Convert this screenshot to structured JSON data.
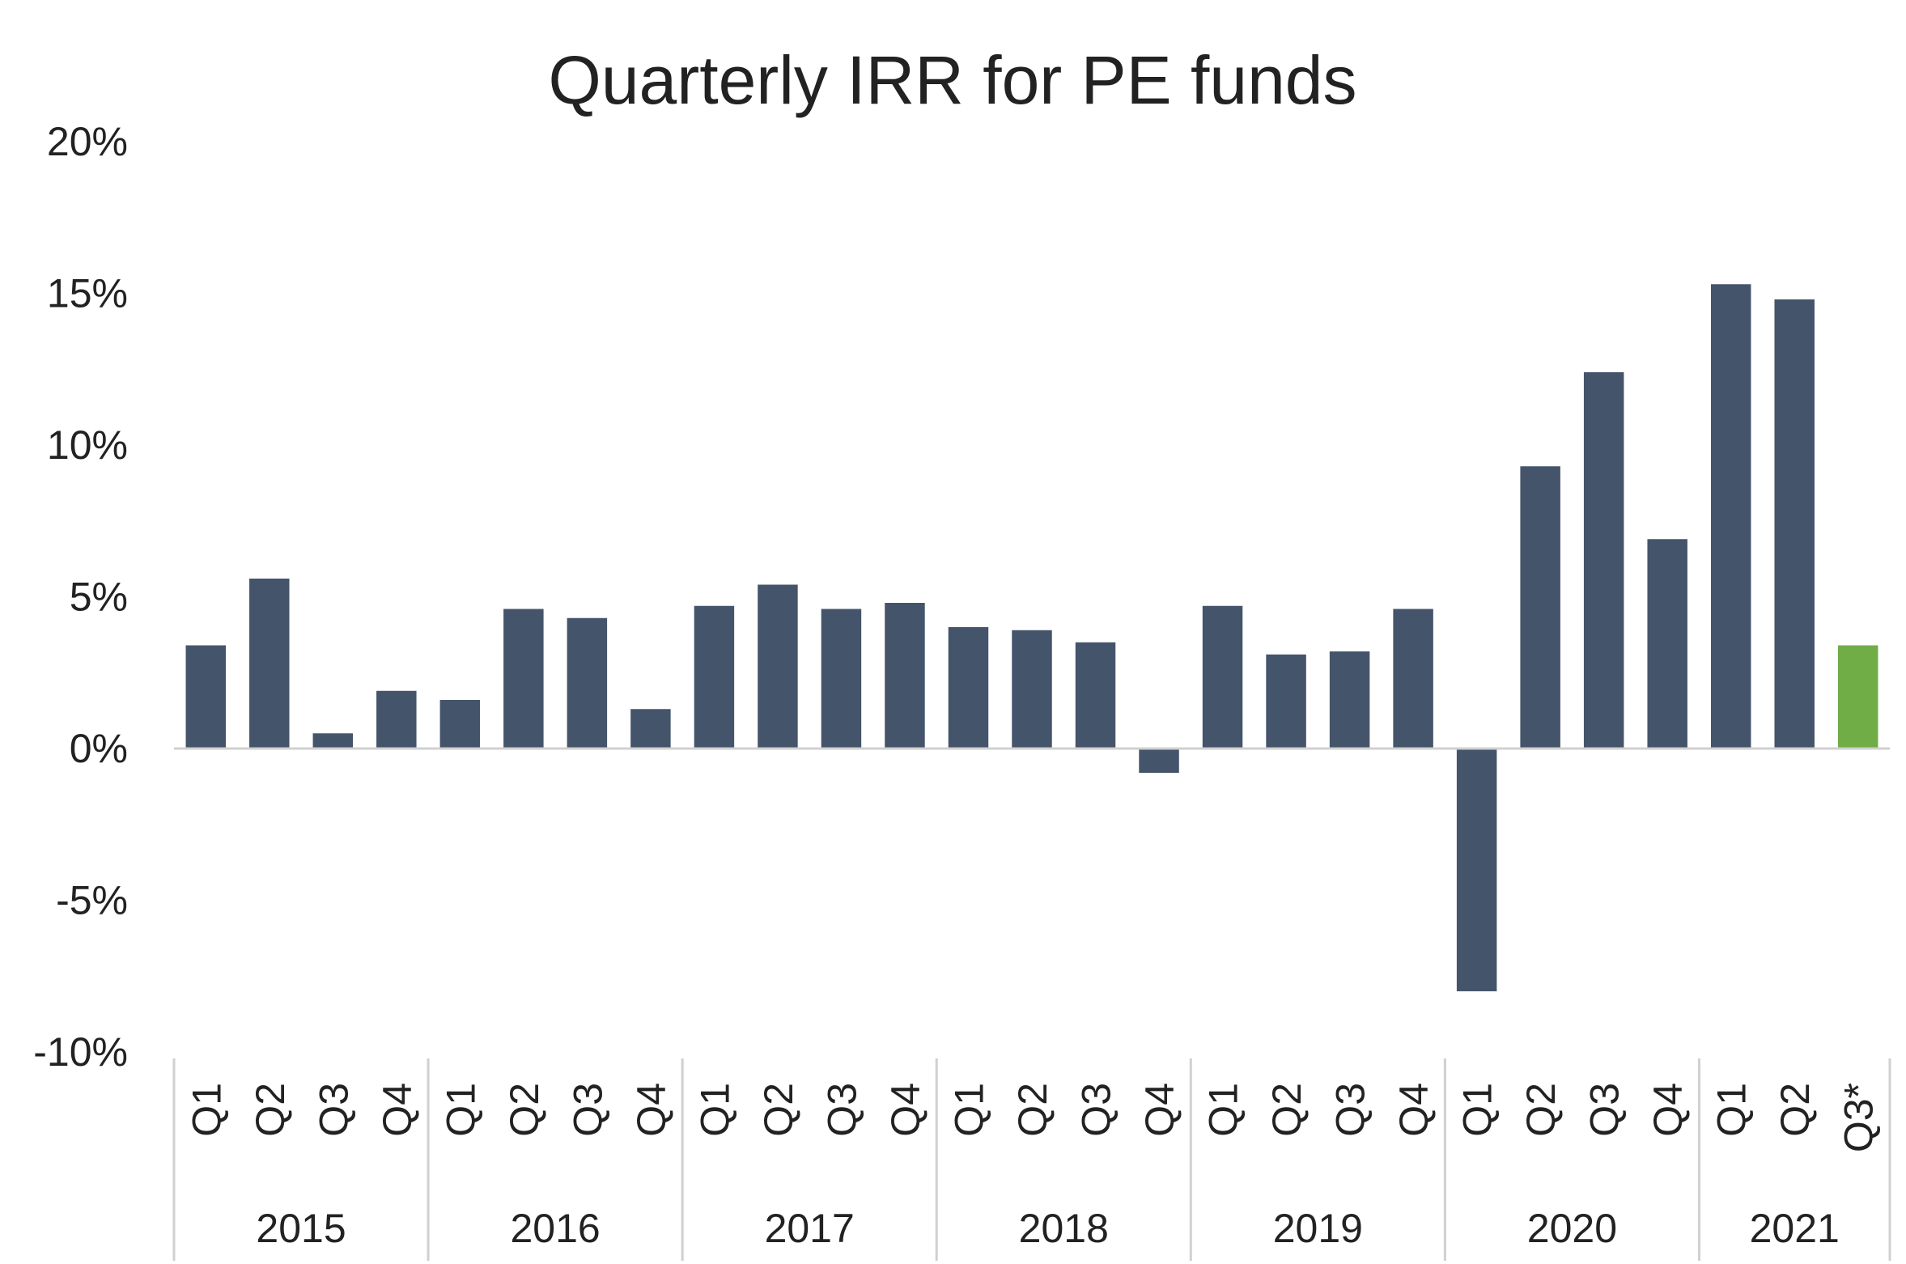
{
  "chart_data": {
    "type": "bar",
    "title": "Quarterly IRR for PE funds",
    "xlabel": "",
    "ylabel": "",
    "ylim": [
      -10,
      20
    ],
    "yticks": [
      20,
      15,
      10,
      5,
      0,
      -5,
      -10
    ],
    "ytick_labels": [
      "20%",
      "15%",
      "10%",
      "5%",
      "0%",
      "-5%",
      "-10%"
    ],
    "grid": false,
    "legend": "none",
    "categories": [
      "Q1",
      "Q2",
      "Q3",
      "Q4",
      "Q1",
      "Q2",
      "Q3",
      "Q4",
      "Q1",
      "Q2",
      "Q3",
      "Q4",
      "Q1",
      "Q2",
      "Q3",
      "Q4",
      "Q1",
      "Q2",
      "Q3",
      "Q4",
      "Q1",
      "Q2",
      "Q3",
      "Q4",
      "Q1",
      "Q2",
      "Q3*"
    ],
    "groups": [
      {
        "label": "2015",
        "count": 4
      },
      {
        "label": "2016",
        "count": 4
      },
      {
        "label": "2017",
        "count": 4
      },
      {
        "label": "2018",
        "count": 4
      },
      {
        "label": "2019",
        "count": 4
      },
      {
        "label": "2020",
        "count": 4
      },
      {
        "label": "2021",
        "count": 3
      }
    ],
    "values": [
      3.4,
      5.6,
      0.5,
      1.9,
      1.6,
      4.6,
      4.3,
      1.3,
      4.7,
      5.4,
      4.6,
      4.8,
      4.0,
      3.9,
      3.5,
      -0.8,
      4.7,
      3.1,
      3.2,
      4.6,
      -8.0,
      9.3,
      12.4,
      6.9,
      15.3,
      14.8,
      3.4
    ],
    "colors": {
      "default": "#44546A",
      "highlight": "#70AD47",
      "axis": "#D0D0D0"
    },
    "highlight_index": 26
  }
}
